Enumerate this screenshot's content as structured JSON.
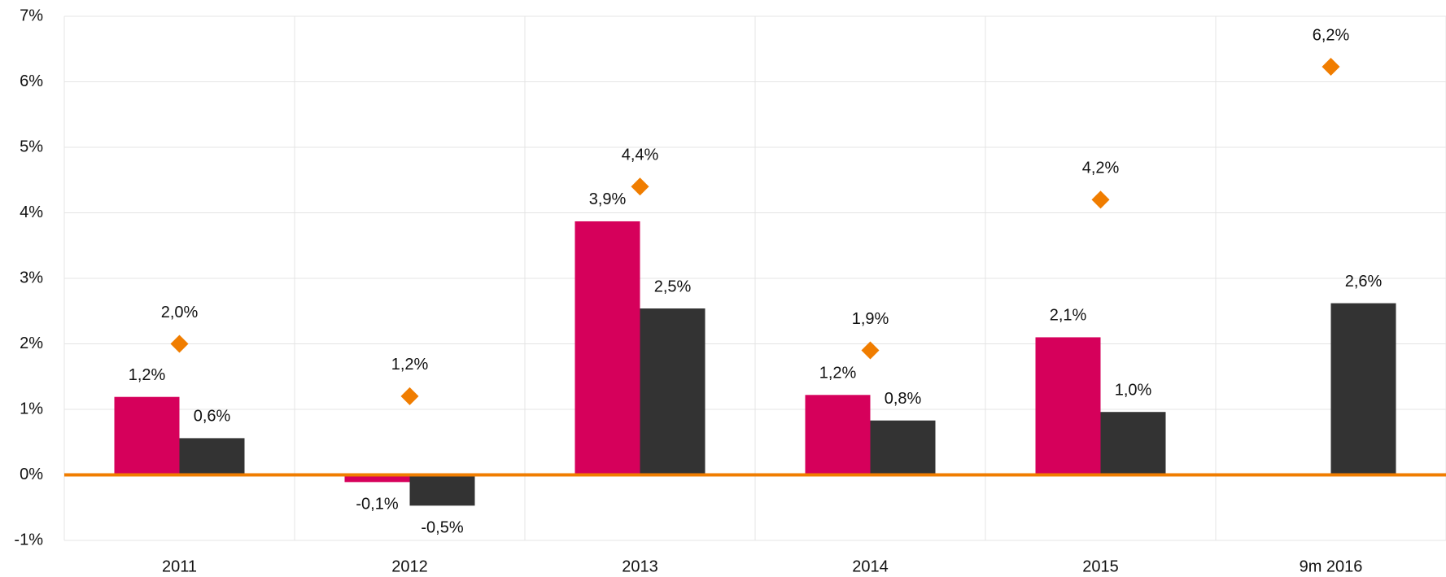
{
  "chart_data": {
    "type": "bar",
    "categories": [
      "2011",
      "2012",
      "2013",
      "2014",
      "2015",
      "9m 2016"
    ],
    "series": [
      {
        "color": "#d6005b",
        "values": [
          1.19,
          -0.11,
          3.87,
          1.22,
          2.1,
          null
        ],
        "value_labels": [
          "1,2%",
          "-0,1%",
          "3,9%",
          "1,2%",
          "2,1%",
          null
        ]
      },
      {
        "color": "#333333",
        "values": [
          0.56,
          -0.47,
          2.54,
          0.83,
          0.96,
          2.62
        ],
        "value_labels": [
          "0,6%",
          "-0,5%",
          "2,5%",
          "0,8%",
          "1,0%",
          "2,6%"
        ]
      },
      {
        "type": "scatter",
        "marker": "diamond",
        "color": "#f07d00",
        "values": [
          2.0,
          1.2,
          4.4,
          1.9,
          4.2,
          6.23
        ],
        "value_labels": [
          "2,0%",
          "1,2%",
          "4,4%",
          "1,9%",
          "4,2%",
          "6,2%"
        ]
      }
    ],
    "ylim": [
      -1,
      7
    ],
    "yticks": [
      {
        "value": -1,
        "label": "-1%"
      },
      {
        "value": 0,
        "label": "0%"
      },
      {
        "value": 1,
        "label": "1%"
      },
      {
        "value": 2,
        "label": "2%"
      },
      {
        "value": 3,
        "label": "3%"
      },
      {
        "value": 4,
        "label": "4%"
      },
      {
        "value": 5,
        "label": "5%"
      },
      {
        "value": 6,
        "label": "6%"
      },
      {
        "value": 7,
        "label": "7%"
      }
    ],
    "grid": true,
    "zero_line_color": "#f07d00"
  }
}
